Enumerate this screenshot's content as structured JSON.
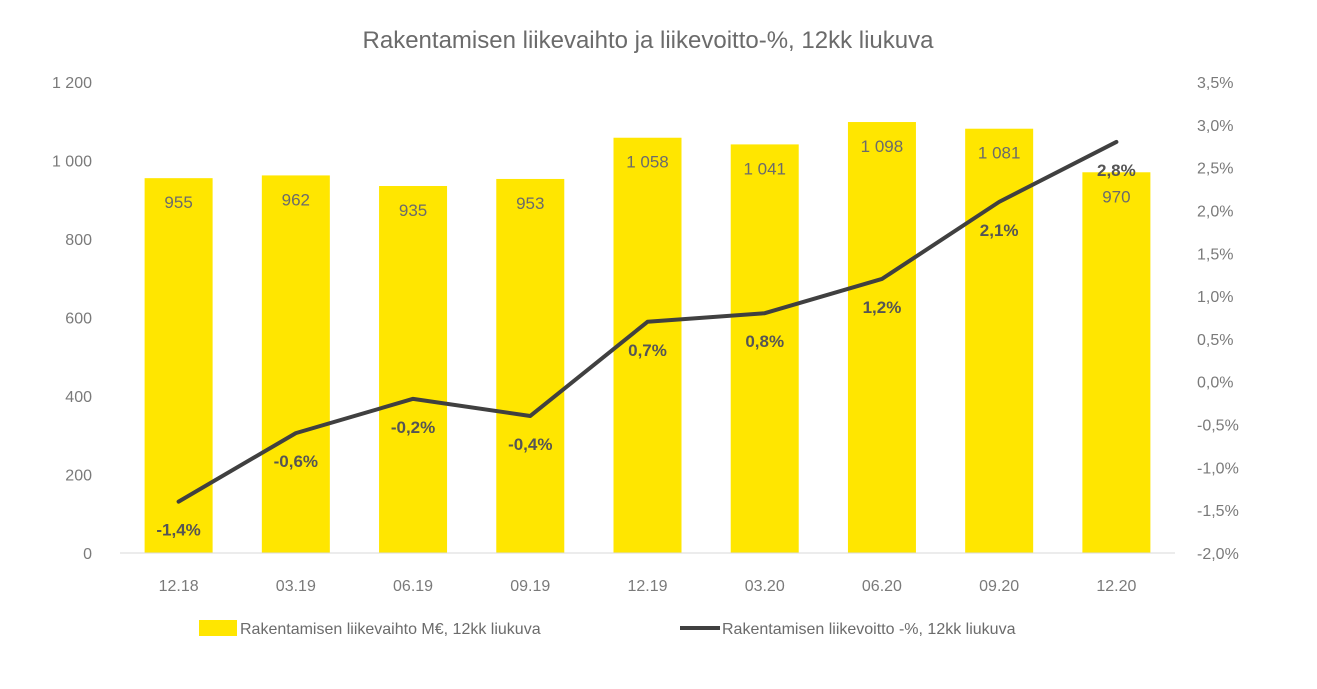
{
  "chart_data": {
    "type": "bar",
    "title": "Rakentamisen liikevaihto ja liikevoitto-%, 12kk liukuva",
    "categories": [
      "12.18",
      "03.19",
      "06.19",
      "09.19",
      "12.19",
      "03.20",
      "06.20",
      "09.20",
      "12.20"
    ],
    "series": [
      {
        "name": "Rakentamisen liikevaihto M€, 12kk liukuva",
        "type": "bar",
        "axis": "left",
        "values": [
          955,
          962,
          935,
          953,
          1058,
          1041,
          1098,
          1081,
          970
        ],
        "labels": [
          "955",
          "962",
          "935",
          "953",
          "1 058",
          "1 041",
          "1 098",
          "1 081",
          "970"
        ],
        "color": "#FFE600"
      },
      {
        "name": "Rakentamisen liikevoitto -%, 12kk liukuva",
        "type": "line",
        "axis": "right",
        "values": [
          -1.4,
          -0.6,
          -0.2,
          -0.4,
          0.7,
          0.8,
          1.2,
          2.1,
          2.8
        ],
        "labels": [
          "-1,4%",
          "-0,6%",
          "-0,2%",
          "-0,4%",
          "0,7%",
          "0,8%",
          "1,2%",
          "2,1%",
          "2,8%"
        ],
        "color": "#404040"
      }
    ],
    "y_left": {
      "ylim": [
        0,
        1200
      ],
      "ticks": [
        0,
        200,
        400,
        600,
        800,
        1000,
        1200
      ],
      "tick_labels": [
        "0",
        "200",
        "400",
        "600",
        "800",
        "1 000",
        "1 200"
      ]
    },
    "y_right": {
      "ylim": [
        -2.0,
        3.5
      ],
      "ticks": [
        -2.0,
        -1.5,
        -1.0,
        -0.5,
        0.0,
        0.5,
        1.0,
        1.5,
        2.0,
        2.5,
        3.0,
        3.5
      ],
      "tick_labels": [
        "-2,0%",
        "-1,5%",
        "-1,0%",
        "-0,5%",
        "0,0%",
        "0,5%",
        "1,0%",
        "1,5%",
        "2,0%",
        "2,5%",
        "3,0%",
        "3,5%"
      ]
    },
    "grid": false,
    "legend": "bottom"
  }
}
